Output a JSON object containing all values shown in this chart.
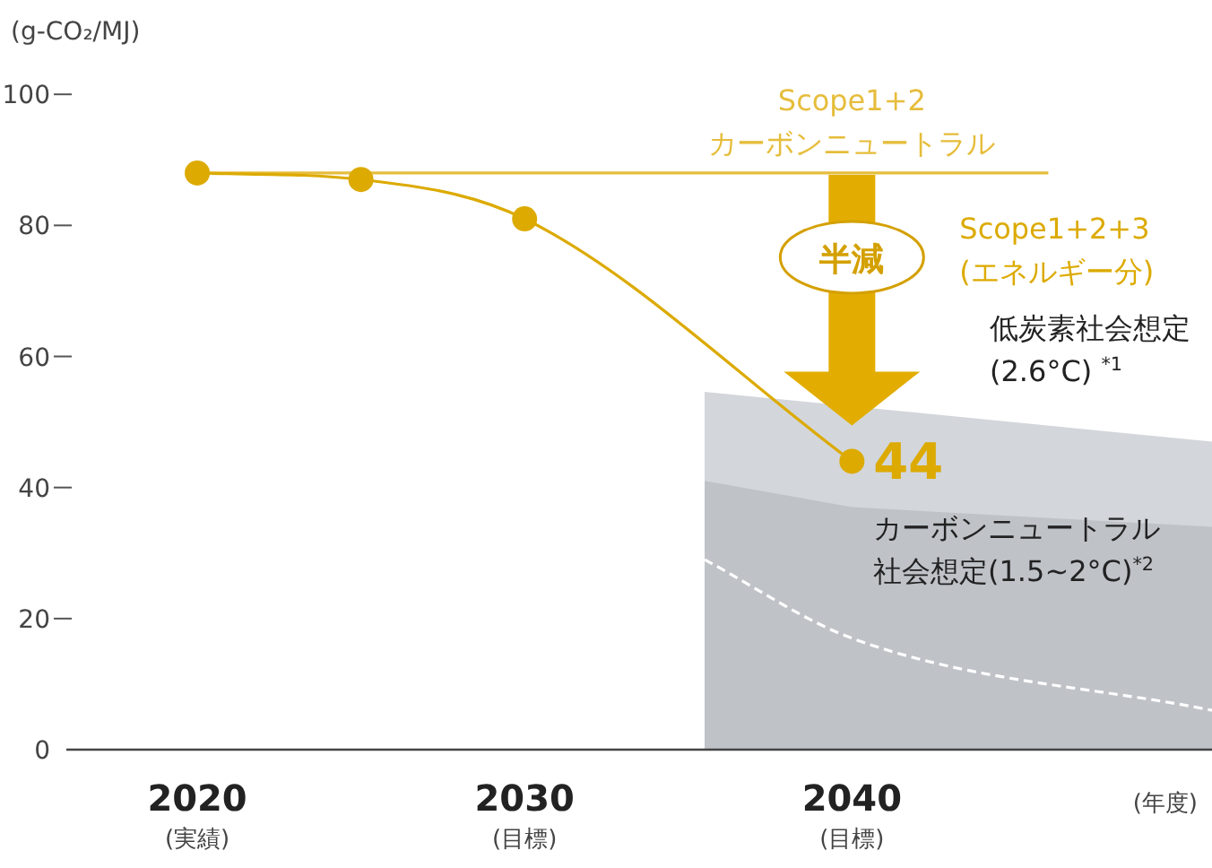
{
  "chart_data": {
    "type": "line",
    "ylabel": "(g-CO₂/MJ)",
    "xlabel": "(年度)",
    "xlim": [
      2016,
      2051
    ],
    "ylim": [
      0,
      100
    ],
    "xticks": [
      {
        "value": 2020,
        "label": "2020\n(実績)"
      },
      {
        "value": 2030,
        "label": "2030\n(目標)"
      },
      {
        "value": 2040,
        "label": "2040\n(目標)"
      }
    ],
    "yticks": [
      0,
      20,
      40,
      60,
      80,
      100
    ],
    "grid": false,
    "legend": false,
    "series": [
      {
        "name": "低炭素社会想定\n(2.6°C) $^{*1}$",
        "type": "area",
        "color": "#d3d6da",
        "x": [
          2035.5,
          2051
        ],
        "values": [
          54.6,
          47
        ]
      },
      {
        "name": "カーボンニュートラル社会想定(1.5~2°C)$^{*2}$",
        "type": "area",
        "color": "#bfc3c8",
        "x": [
          2035.5,
          2040,
          2051
        ],
        "values": [
          41,
          37,
          34
        ]
      },
      {
        "color": "#ffffff",
        "line_style": "dashed",
        "marker": "none",
        "x": [
          2035.5,
          2040,
          2051
        ],
        "values": [
          29,
          17,
          6
        ]
      },
      {
        "name": "Scope1+2\nカーボンニュートラル",
        "color": "#e6bd3c",
        "line_style": "solid",
        "x": [
          2020,
          2046
        ],
        "values": [
          88,
          88
        ]
      },
      {
        "name": "Scope1+2+3\n(エネルギー分)",
        "color": "#dcaa00",
        "marker": "circle",
        "line_style": "solid",
        "x": [
          2020,
          2025,
          2030,
          2040
        ],
        "values": [
          88,
          87,
          81,
          44
        ],
        "value_labels": [
          null,
          null,
          null,
          "44"
        ]
      }
    ],
    "annotations": [
      "半減"
    ]
  }
}
